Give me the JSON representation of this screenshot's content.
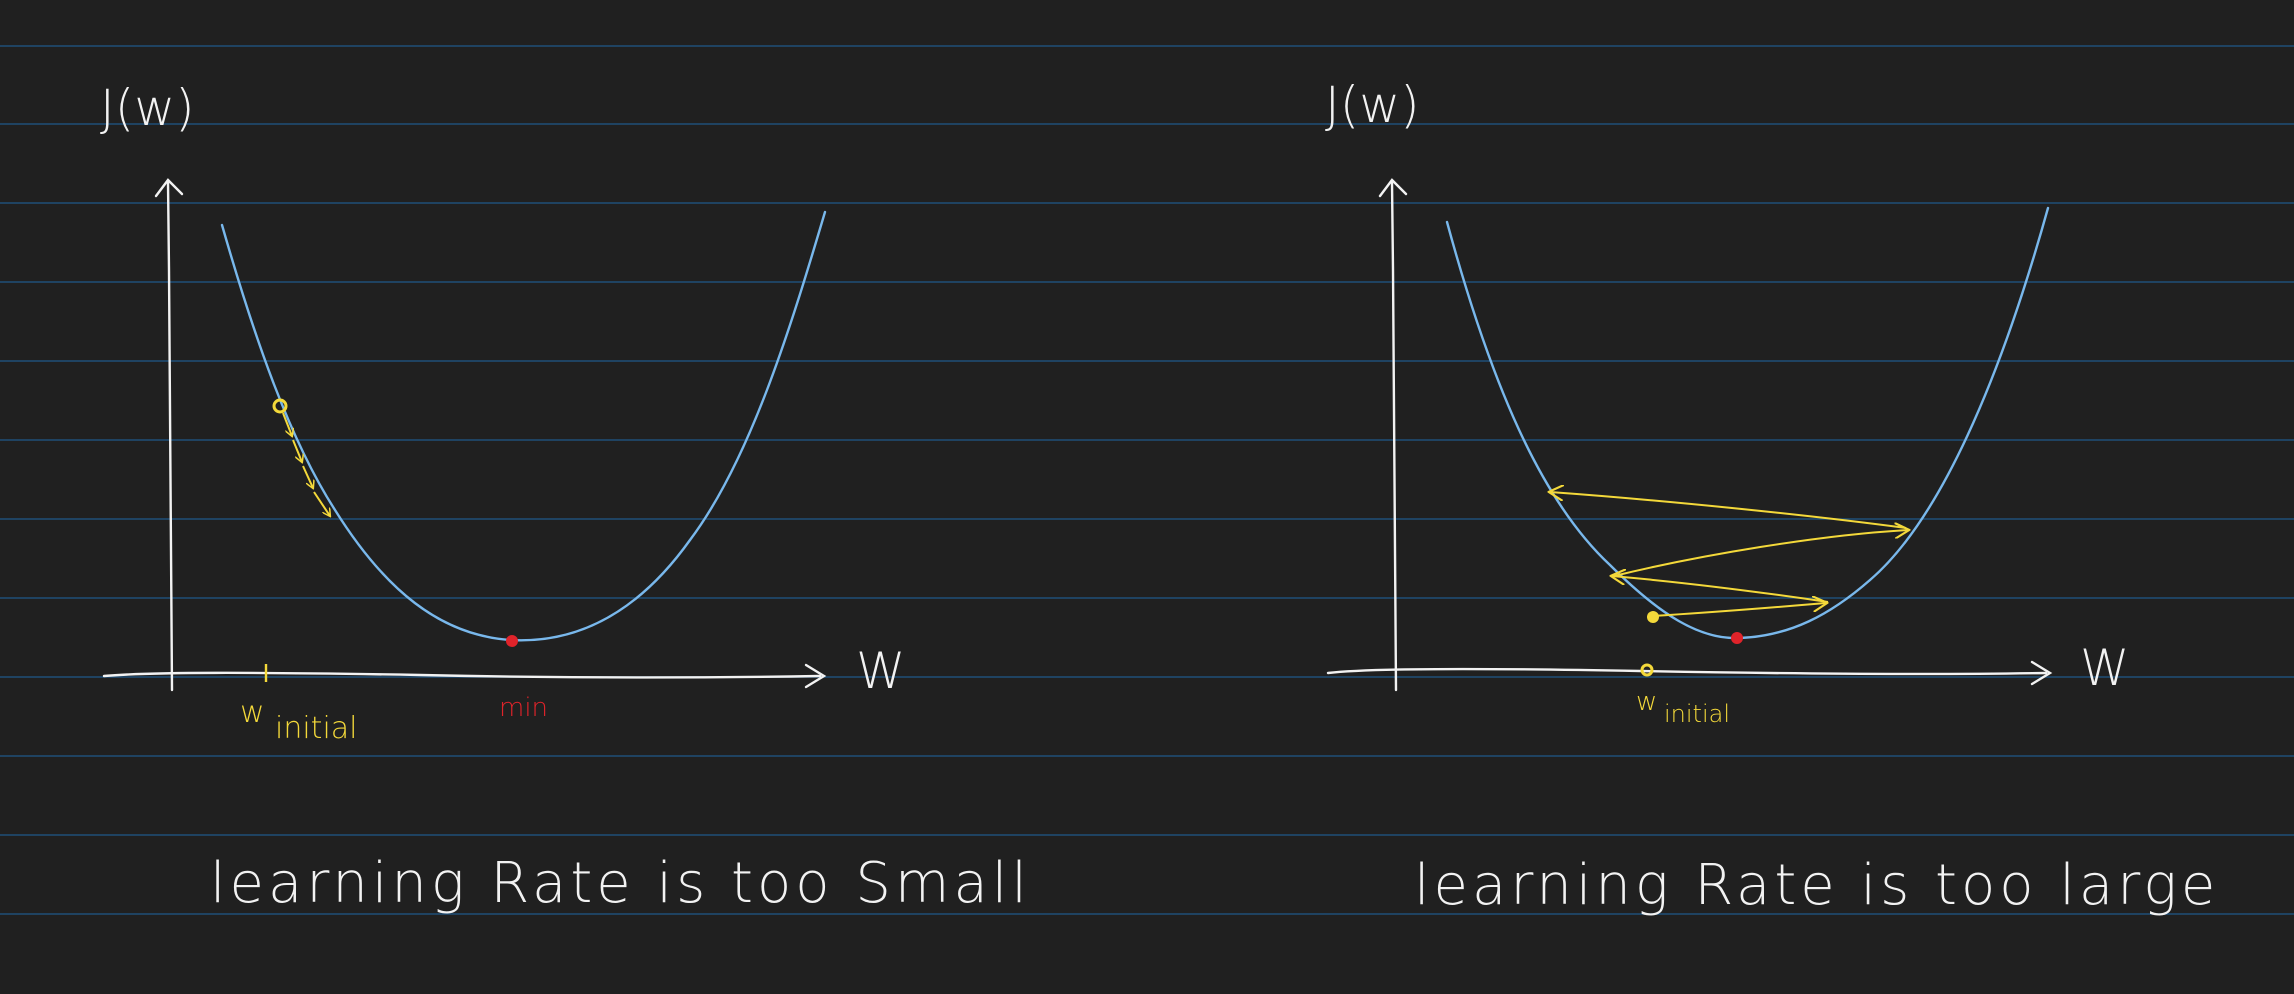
{
  "colors": {
    "background": "#202020",
    "ruled_line": "#1f4f78",
    "curve": "#79b8ec",
    "axis": "#f2f2f2",
    "step": "#f4d93a",
    "minimum": "#e0232a"
  },
  "left_panel": {
    "y_label": "J(w)",
    "x_label": "W",
    "w_label_letter": "w",
    "w_label_subscript": "initial",
    "min_label": "min",
    "caption": "learning Rate is too Small"
  },
  "right_panel": {
    "y_label": "J(w)",
    "x_label": "W",
    "w_label_letter": "w",
    "w_label_subscript": "initial",
    "caption": "learning Rate is too large"
  }
}
